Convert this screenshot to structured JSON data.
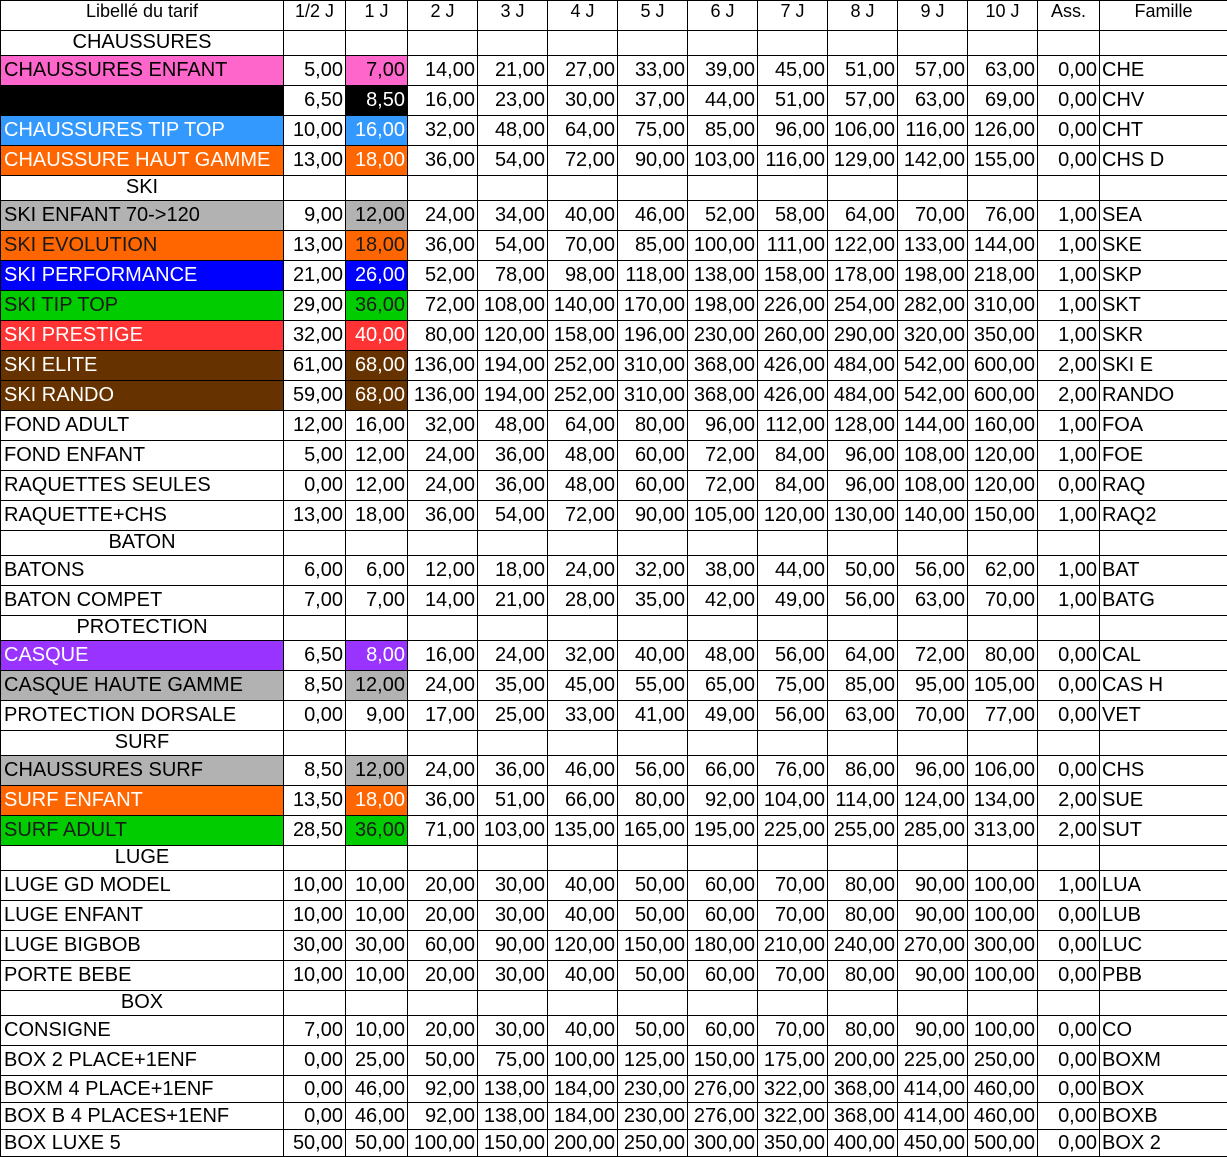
{
  "table": {
    "columns": [
      "Libellé du tarif",
      "1/2 J",
      "1 J",
      "2 J",
      "3 J",
      "4 J",
      "5 J",
      "6 J",
      "7 J",
      "8 J",
      "9 J",
      "10 J",
      "Ass.",
      "Famille"
    ],
    "rows": [
      {
        "section": "CHAUSSURES"
      },
      {
        "label": "CHAUSSURES ENFANT",
        "prices": [
          "5,00",
          "7,00",
          "14,00",
          "21,00",
          "27,00",
          "33,00",
          "39,00",
          "45,00",
          "51,00",
          "57,00",
          "63,00"
        ],
        "ass": "0,00",
        "famille": "CHE",
        "color": "#ff66cc",
        "text_color": "#000000"
      },
      {
        "label": null,
        "prices": [
          "6,50",
          "8,50",
          "16,00",
          "23,00",
          "30,00",
          "37,00",
          "44,00",
          "51,00",
          "57,00",
          "63,00",
          "69,00"
        ],
        "ass": "0,00",
        "famille": "CHV",
        "color": "#000000",
        "text_color": "#ffffff"
      },
      {
        "label": "CHAUSSURES TIP TOP",
        "prices": [
          "10,00",
          "16,00",
          "32,00",
          "48,00",
          "64,00",
          "75,00",
          "85,00",
          "96,00",
          "106,00",
          "116,00",
          "126,00"
        ],
        "ass": "0,00",
        "famille": "CHT",
        "color": "#3399ff",
        "text_color": "#ffffff"
      },
      {
        "label": "CHAUSSURE HAUT GAMME",
        "prices": [
          "13,00",
          "18,00",
          "36,00",
          "54,00",
          "72,00",
          "90,00",
          "103,00",
          "116,00",
          "129,00",
          "142,00",
          "155,00"
        ],
        "ass": "0,00",
        "famille": "CHS D",
        "color": "#ff6600",
        "text_color": "#ffffff"
      },
      {
        "section": "SKI"
      },
      {
        "label": "SKI ENFANT 70->120",
        "prices": [
          "9,00",
          "12,00",
          "24,00",
          "34,00",
          "40,00",
          "46,00",
          "52,00",
          "58,00",
          "64,00",
          "70,00",
          "76,00"
        ],
        "ass": "1,00",
        "famille": "SEA",
        "color": "#b2b2b2",
        "text_color": "#000000"
      },
      {
        "label": "SKI EVOLUTION",
        "prices": [
          "13,00",
          "18,00",
          "36,00",
          "54,00",
          "70,00",
          "85,00",
          "100,00",
          "111,00",
          "122,00",
          "133,00",
          "144,00"
        ],
        "ass": "1,00",
        "famille": "SKE",
        "color": "#ff6600",
        "text_color": "#1a1a1a"
      },
      {
        "label": "SKI PERFORMANCE",
        "prices": [
          "21,00",
          "26,00",
          "52,00",
          "78,00",
          "98,00",
          "118,00",
          "138,00",
          "158,00",
          "178,00",
          "198,00",
          "218,00"
        ],
        "ass": "1,00",
        "famille": "SKP",
        "color": "#0000ff",
        "text_color": "#ffffff"
      },
      {
        "label": "SKI TIP TOP",
        "prices": [
          "29,00",
          "36,00",
          "72,00",
          "108,00",
          "140,00",
          "170,00",
          "198,00",
          "226,00",
          "254,00",
          "282,00",
          "310,00"
        ],
        "ass": "1,00",
        "famille": "SKT",
        "color": "#00cc00",
        "text_color": "#1a1a1a"
      },
      {
        "label": "SKI PRESTIGE",
        "prices": [
          "32,00",
          "40,00",
          "80,00",
          "120,00",
          "158,00",
          "196,00",
          "230,00",
          "260,00",
          "290,00",
          "320,00",
          "350,00"
        ],
        "ass": "1,00",
        "famille": "SKR",
        "color": "#ff3333",
        "text_color": "#ffffff"
      },
      {
        "label": "SKI ELITE",
        "prices": [
          "61,00",
          "68,00",
          "136,00",
          "194,00",
          "252,00",
          "310,00",
          "368,00",
          "426,00",
          "484,00",
          "542,00",
          "600,00"
        ],
        "ass": "2,00",
        "famille": "SKI E",
        "color": "#663300",
        "text_color": "#ffffff"
      },
      {
        "label": "SKI RANDO",
        "prices": [
          "59,00",
          "68,00",
          "136,00",
          "194,00",
          "252,00",
          "310,00",
          "368,00",
          "426,00",
          "484,00",
          "542,00",
          "600,00"
        ],
        "ass": "2,00",
        "famille": "RANDO",
        "color": "#663300",
        "text_color": "#ffffff"
      },
      {
        "label": "FOND ADULT",
        "prices": [
          "12,00",
          "16,00",
          "32,00",
          "48,00",
          "64,00",
          "80,00",
          "96,00",
          "112,00",
          "128,00",
          "144,00",
          "160,00"
        ],
        "ass": "1,00",
        "famille": "FOA"
      },
      {
        "label": "FOND ENFANT",
        "prices": [
          "5,00",
          "12,00",
          "24,00",
          "36,00",
          "48,00",
          "60,00",
          "72,00",
          "84,00",
          "96,00",
          "108,00",
          "120,00"
        ],
        "ass": "1,00",
        "famille": "FOE"
      },
      {
        "label": "RAQUETTES SEULES",
        "prices": [
          "0,00",
          "12,00",
          "24,00",
          "36,00",
          "48,00",
          "60,00",
          "72,00",
          "84,00",
          "96,00",
          "108,00",
          "120,00"
        ],
        "ass": "0,00",
        "famille": "RAQ"
      },
      {
        "label": "RAQUETTE+CHS",
        "prices": [
          "13,00",
          "18,00",
          "36,00",
          "54,00",
          "72,00",
          "90,00",
          "105,00",
          "120,00",
          "130,00",
          "140,00",
          "150,00"
        ],
        "ass": "1,00",
        "famille": "RAQ2"
      },
      {
        "section": "BATON"
      },
      {
        "label": "BATONS",
        "prices": [
          "6,00",
          "6,00",
          "12,00",
          "18,00",
          "24,00",
          "32,00",
          "38,00",
          "44,00",
          "50,00",
          "56,00",
          "62,00"
        ],
        "ass": "1,00",
        "famille": "BAT"
      },
      {
        "label": "BATON COMPET",
        "prices": [
          "7,00",
          "7,00",
          "14,00",
          "21,00",
          "28,00",
          "35,00",
          "42,00",
          "49,00",
          "56,00",
          "63,00",
          "70,00"
        ],
        "ass": "1,00",
        "famille": "BATG"
      },
      {
        "section": "PROTECTION"
      },
      {
        "label": "CASQUE",
        "prices": [
          "6,50",
          "8,00",
          "16,00",
          "24,00",
          "32,00",
          "40,00",
          "48,00",
          "56,00",
          "64,00",
          "72,00",
          "80,00"
        ],
        "ass": "0,00",
        "famille": "CAL",
        "color": "#9933ff",
        "text_color": "#ffffff"
      },
      {
        "label": "CASQUE HAUTE GAMME",
        "prices": [
          "8,50",
          "12,00",
          "24,00",
          "35,00",
          "45,00",
          "55,00",
          "65,00",
          "75,00",
          "85,00",
          "95,00",
          "105,00"
        ],
        "ass": "0,00",
        "famille": "CAS H",
        "color": "#b2b2b2",
        "text_color": "#000000"
      },
      {
        "label": "PROTECTION DORSALE",
        "prices": [
          "0,00",
          "9,00",
          "17,00",
          "25,00",
          "33,00",
          "41,00",
          "49,00",
          "56,00",
          "63,00",
          "70,00",
          "77,00"
        ],
        "ass": "0,00",
        "famille": "VET"
      },
      {
        "section": "SURF"
      },
      {
        "label": "CHAUSSURES SURF",
        "prices": [
          "8,50",
          "12,00",
          "24,00",
          "36,00",
          "46,00",
          "56,00",
          "66,00",
          "76,00",
          "86,00",
          "96,00",
          "106,00"
        ],
        "ass": "0,00",
        "famille": "CHS",
        "color": "#b2b2b2",
        "text_color": "#000000"
      },
      {
        "label": "SURF ENFANT",
        "prices": [
          "13,50",
          "18,00",
          "36,00",
          "51,00",
          "66,00",
          "80,00",
          "92,00",
          "104,00",
          "114,00",
          "124,00",
          "134,00"
        ],
        "ass": "2,00",
        "famille": "SUE",
        "color": "#ff6600",
        "text_color": "#ffffff"
      },
      {
        "label": "SURF ADULT",
        "prices": [
          "28,50",
          "36,00",
          "71,00",
          "103,00",
          "135,00",
          "165,00",
          "195,00",
          "225,00",
          "255,00",
          "285,00",
          "313,00"
        ],
        "ass": "2,00",
        "famille": "SUT",
        "color": "#00cc00",
        "text_color": "#1a1a1a"
      },
      {
        "section": "LUGE"
      },
      {
        "label": "LUGE GD MODEL",
        "prices": [
          "10,00",
          "10,00",
          "20,00",
          "30,00",
          "40,00",
          "50,00",
          "60,00",
          "70,00",
          "80,00",
          "90,00",
          "100,00"
        ],
        "ass": "1,00",
        "famille": "LUA"
      },
      {
        "label": "LUGE ENFANT",
        "prices": [
          "10,00",
          "10,00",
          "20,00",
          "30,00",
          "40,00",
          "50,00",
          "60,00",
          "70,00",
          "80,00",
          "90,00",
          "100,00"
        ],
        "ass": "0,00",
        "famille": "LUB"
      },
      {
        "label": "LUGE BIGBOB",
        "prices": [
          "30,00",
          "30,00",
          "60,00",
          "90,00",
          "120,00",
          "150,00",
          "180,00",
          "210,00",
          "240,00",
          "270,00",
          "300,00"
        ],
        "ass": "0,00",
        "famille": "LUC"
      },
      {
        "label": "PORTE BEBE",
        "prices": [
          "10,00",
          "10,00",
          "20,00",
          "30,00",
          "40,00",
          "50,00",
          "60,00",
          "70,00",
          "80,00",
          "90,00",
          "100,00"
        ],
        "ass": "0,00",
        "famille": "PBB"
      },
      {
        "section": "BOX"
      },
      {
        "label": "CONSIGNE",
        "prices": [
          "7,00",
          "10,00",
          "20,00",
          "30,00",
          "40,00",
          "50,00",
          "60,00",
          "70,00",
          "80,00",
          "90,00",
          "100,00"
        ],
        "ass": "0,00",
        "famille": "CO"
      },
      {
        "label": "BOX 2 PLACE+1ENF",
        "prices": [
          "0,00",
          "25,00",
          "50,00",
          "75,00",
          "100,00",
          "125,00",
          "150,00",
          "175,00",
          "200,00",
          "225,00",
          "250,00"
        ],
        "ass": "0,00",
        "famille": "BOXM"
      },
      {
        "label": "BOXM 4 PLACE+1ENF",
        "prices": [
          "0,00",
          "46,00",
          "92,00",
          "138,00",
          "184,00",
          "230,00",
          "276,00",
          "322,00",
          "368,00",
          "414,00",
          "460,00"
        ],
        "ass": "0,00",
        "famille": "BOX"
      },
      {
        "label": "BOX B 4 PLACES+1ENF",
        "prices": [
          "0,00",
          "46,00",
          "92,00",
          "138,00",
          "184,00",
          "230,00",
          "276,00",
          "322,00",
          "368,00",
          "414,00",
          "460,00"
        ],
        "ass": "0,00",
        "famille": "BOXB"
      },
      {
        "label": "BOX LUXE 5",
        "prices": [
          "50,00",
          "50,00",
          "100,00",
          "150,00",
          "200,00",
          "250,00",
          "300,00",
          "350,00",
          "400,00",
          "450,00",
          "500,00"
        ],
        "ass": "0,00",
        "famille": "BOX 2"
      }
    ]
  }
}
